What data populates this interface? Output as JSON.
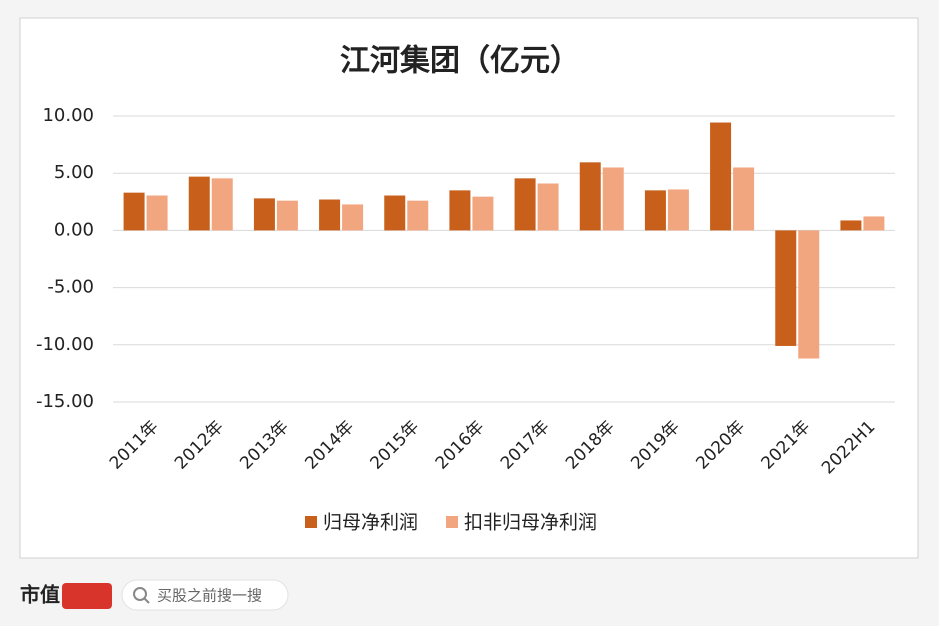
{
  "chart_data": {
    "type": "bar",
    "title": "江河集团（亿元）",
    "categories": [
      "2011年",
      "2012年",
      "2013年",
      "2014年",
      "2015年",
      "2016年",
      "2017年",
      "2018年",
      "2019年",
      "2020年",
      "2021年",
      "2022H1"
    ],
    "series": [
      {
        "name": "归母净利润",
        "color": "#C8601C",
        "values": [
          3.3,
          4.7,
          2.8,
          2.7,
          3.05,
          3.5,
          4.55,
          5.95,
          3.5,
          9.43,
          -10.1,
          0.87
        ]
      },
      {
        "name": "扣非归母净利润",
        "color": "#F2A680",
        "values": [
          3.05,
          4.55,
          2.6,
          2.27,
          2.6,
          2.95,
          4.1,
          5.5,
          3.58,
          5.5,
          -11.2,
          1.22
        ]
      }
    ],
    "ylim": [
      -15,
      10
    ],
    "yticks": [
      {
        "value": 10,
        "label": "10.00"
      },
      {
        "value": 5,
        "label": "5.00"
      },
      {
        "value": 0,
        "label": "0.00"
      },
      {
        "value": -5,
        "label": "-5.00"
      },
      {
        "value": -10,
        "label": "-10.00"
      },
      {
        "value": -15,
        "label": "-15.00"
      }
    ],
    "grid": true,
    "legend": "bottom"
  },
  "footer": {
    "brand": "市值",
    "search": "买股之前搜一搜"
  }
}
